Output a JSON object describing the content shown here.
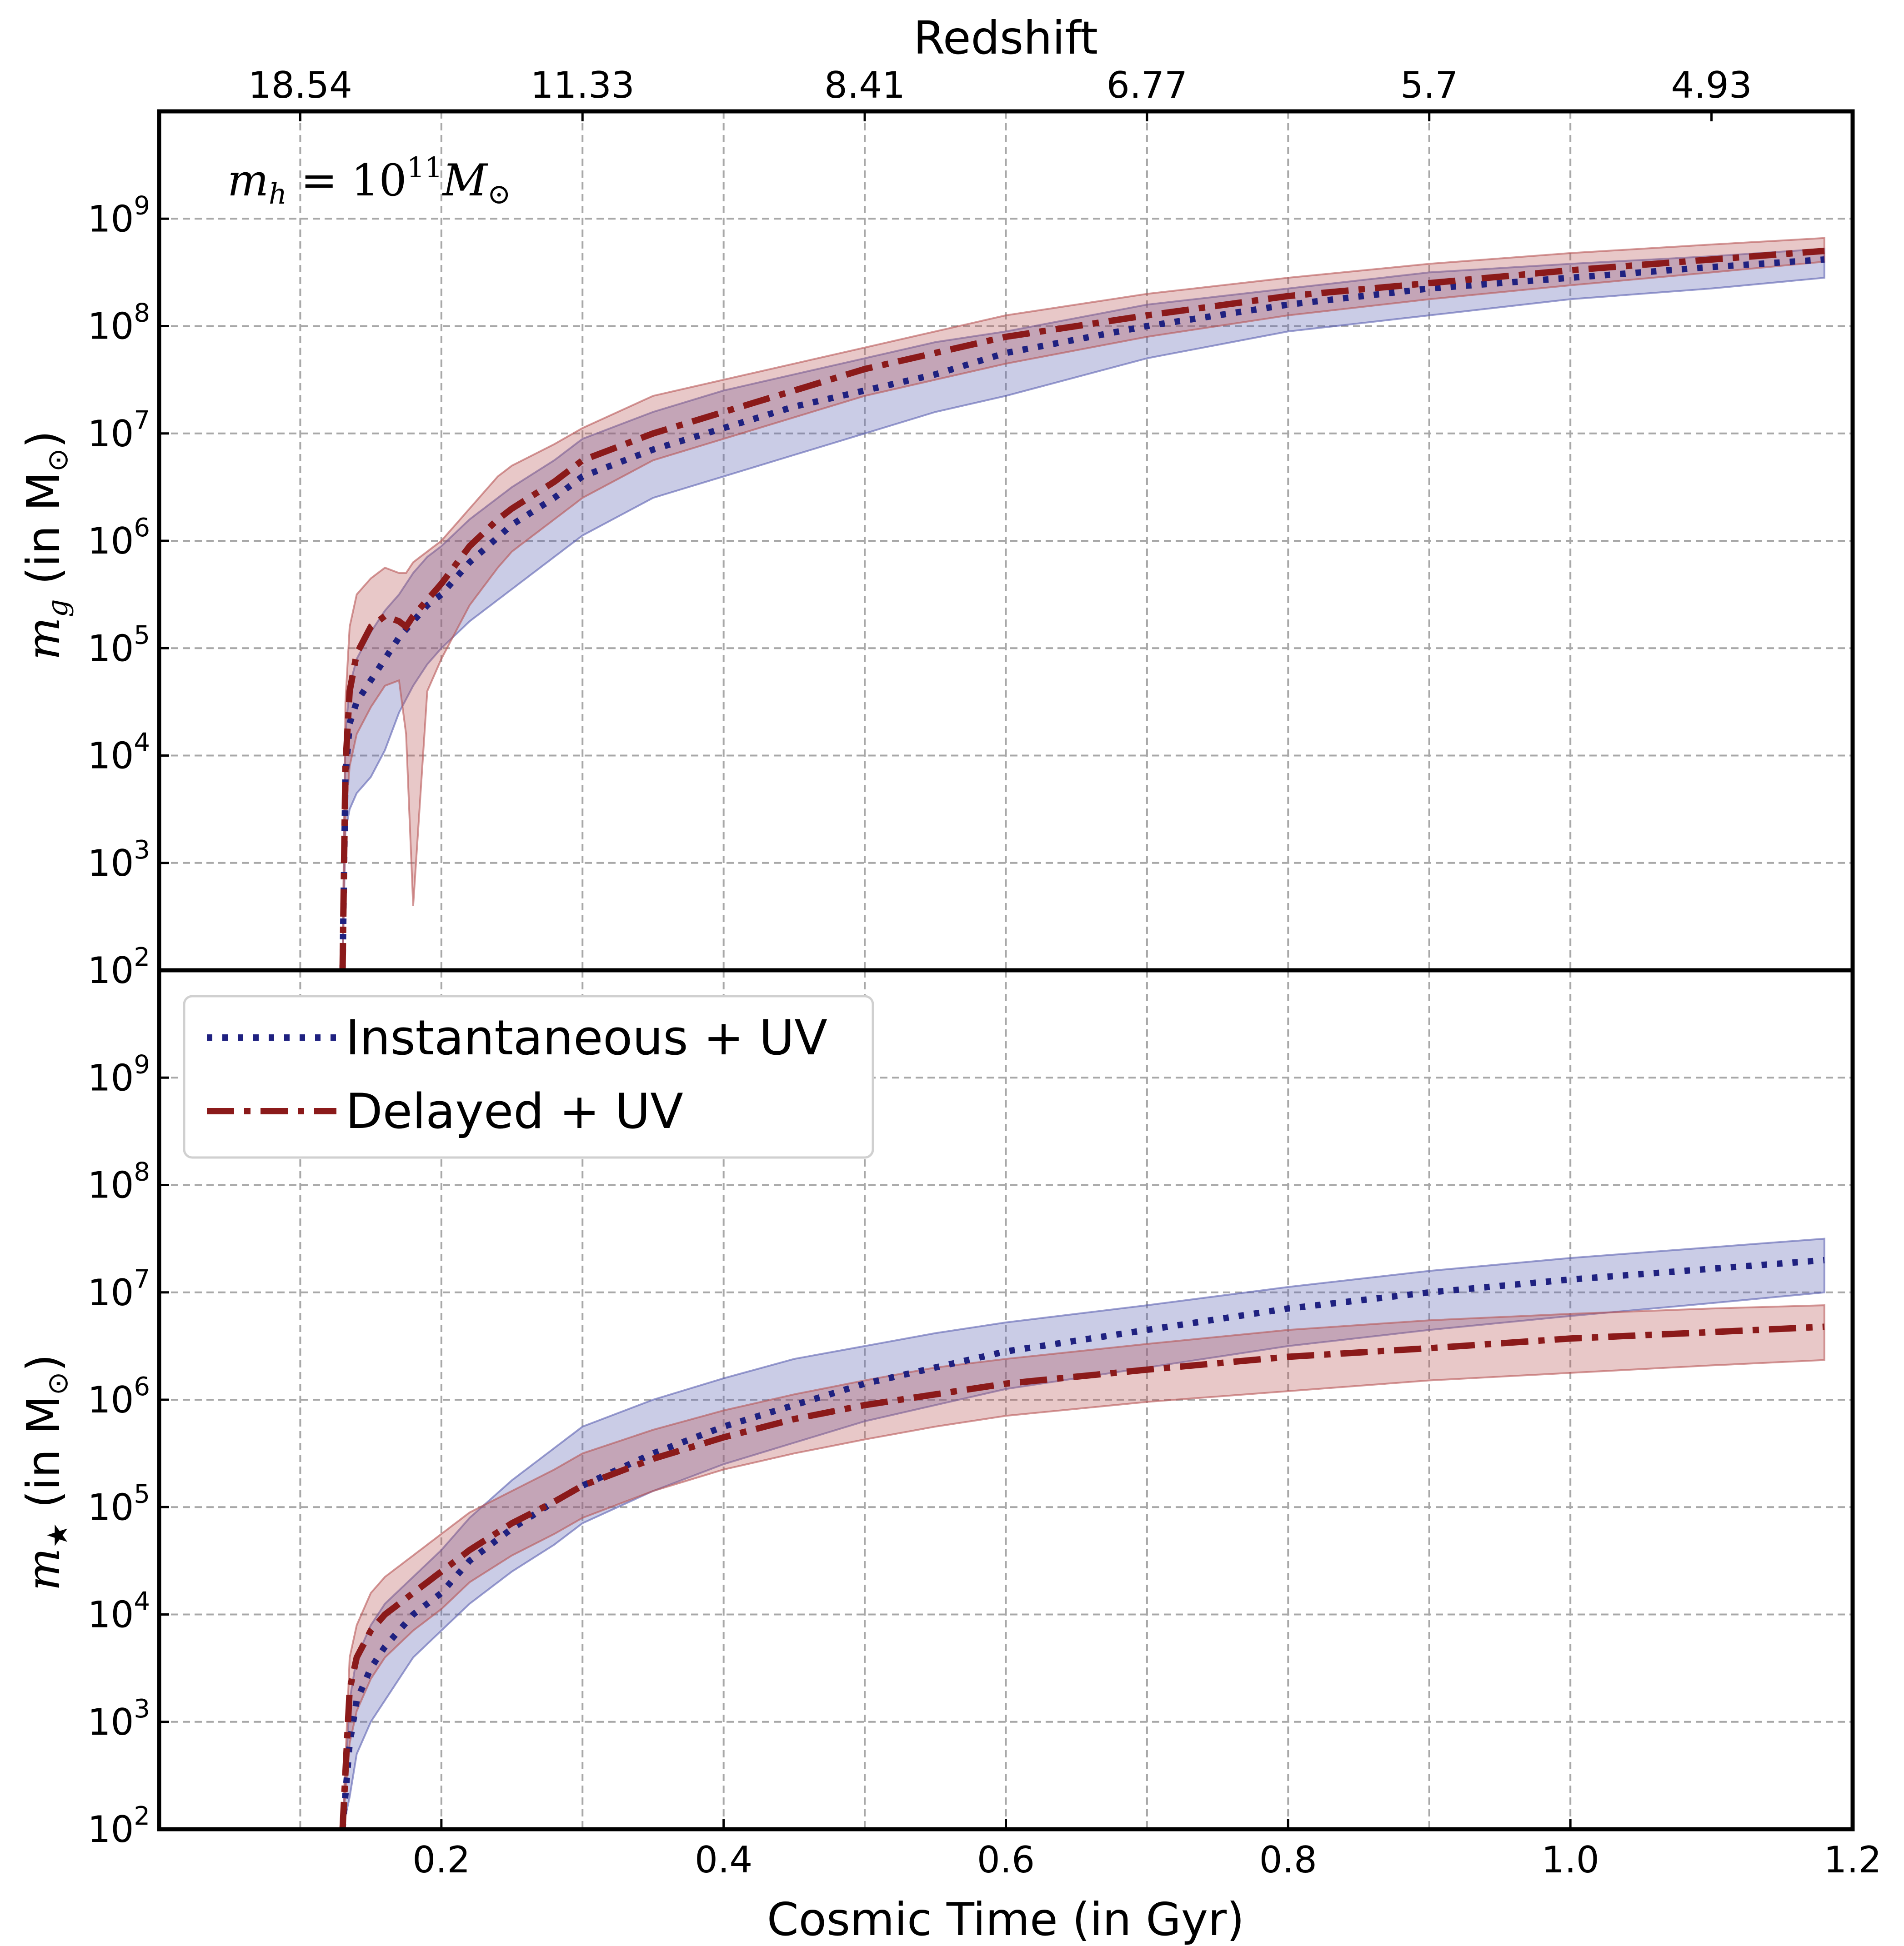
{
  "chart_data": {
    "type": "line",
    "title": "",
    "top_axis": {
      "label": "Redshift",
      "ticks": [
        {
          "t": 0.1,
          "label": "18.54"
        },
        {
          "t": 0.3,
          "label": "11.33"
        },
        {
          "t": 0.5,
          "label": "8.41"
        },
        {
          "t": 0.7,
          "label": "6.77"
        },
        {
          "t": 0.9,
          "label": "5.7"
        },
        {
          "t": 1.1,
          "label": "4.93"
        }
      ]
    },
    "xlabel": "Cosmic Time (in Gyr)",
    "xlim": [
      0.0,
      1.2
    ],
    "xticks": [
      0.2,
      0.4,
      0.6,
      0.8,
      1.0,
      1.2
    ],
    "xtick_labels": [
      "0.2",
      "0.4",
      "0.6",
      "0.8",
      "1.0",
      "1.2"
    ],
    "yscale": "log",
    "ylim_exp": [
      2,
      10
    ],
    "ytick_exps": [
      2,
      3,
      4,
      5,
      6,
      7,
      8,
      9
    ],
    "ytick_base": "10",
    "grid": true,
    "legend": {
      "placement": "upper-left of bottom panel",
      "entries": [
        {
          "series": "instantaneous",
          "label": "Instantaneous + UV"
        },
        {
          "series": "delayed",
          "label": "Delayed + UV"
        }
      ]
    },
    "colors": {
      "instantaneous_line": "#1f2180",
      "instantaneous_band": "#5a5fb0",
      "delayed_line": "#8b1a1a",
      "delayed_band": "#b85555"
    },
    "panels": [
      {
        "name": "gas-mass",
        "annotation": {
          "prefix": "m",
          "sub": "h",
          "equals": " = 10",
          "sup": "11",
          "unit": "M",
          "unit_sub": "⊙"
        },
        "ylabel": {
          "sym": "m",
          "sub": "g",
          "text": " (in M",
          "unit_sub": "⊙",
          "close": ")"
        },
        "series": [
          {
            "name": "Instantaneous + UV",
            "key": "instantaneous",
            "x": [
              0.13,
              0.132,
              0.135,
              0.14,
              0.15,
              0.16,
              0.17,
              0.18,
              0.19,
              0.2,
              0.22,
              0.25,
              0.28,
              0.3,
              0.35,
              0.4,
              0.45,
              0.5,
              0.55,
              0.6,
              0.7,
              0.8,
              0.9,
              1.0,
              1.1,
              1.18
            ],
            "y": [
              2.0,
              3.8,
              4.3,
              4.5,
              4.7,
              4.9,
              5.1,
              5.25,
              5.4,
              5.5,
              5.8,
              6.15,
              6.4,
              6.6,
              6.85,
              7.05,
              7.25,
              7.4,
              7.55,
              7.75,
              8.0,
              8.2,
              8.35,
              8.45,
              8.55,
              8.62
            ],
            "y_lo": [
              2.0,
              3.3,
              3.5,
              3.65,
              3.8,
              4.05,
              4.4,
              4.65,
              4.85,
              5.0,
              5.25,
              5.55,
              5.85,
              6.05,
              6.4,
              6.6,
              6.8,
              7.0,
              7.2,
              7.35,
              7.7,
              7.95,
              8.1,
              8.25,
              8.35,
              8.45
            ],
            "y_hi": [
              2.0,
              4.2,
              4.65,
              4.9,
              5.15,
              5.35,
              5.5,
              5.7,
              5.85,
              5.95,
              6.2,
              6.5,
              6.75,
              6.95,
              7.2,
              7.4,
              7.55,
              7.7,
              7.85,
              7.95,
              8.2,
              8.35,
              8.5,
              8.58,
              8.65,
              8.72
            ]
          },
          {
            "name": "Delayed + UV",
            "key": "delayed",
            "x": [
              0.13,
              0.132,
              0.135,
              0.14,
              0.15,
              0.16,
              0.17,
              0.175,
              0.18,
              0.19,
              0.2,
              0.22,
              0.24,
              0.25,
              0.28,
              0.3,
              0.35,
              0.4,
              0.45,
              0.5,
              0.55,
              0.6,
              0.7,
              0.8,
              0.9,
              1.0,
              1.1,
              1.18
            ],
            "y": [
              2.0,
              3.9,
              4.6,
              4.95,
              5.2,
              5.3,
              5.25,
              5.2,
              5.3,
              5.45,
              5.6,
              5.95,
              6.2,
              6.3,
              6.55,
              6.75,
              7.0,
              7.2,
              7.4,
              7.6,
              7.75,
              7.9,
              8.1,
              8.28,
              8.4,
              8.52,
              8.62,
              8.7
            ],
            "y_lo": [
              2.0,
              3.4,
              3.9,
              4.2,
              4.45,
              4.65,
              4.7,
              4.2,
              2.6,
              4.6,
              4.9,
              5.4,
              5.75,
              5.9,
              6.2,
              6.4,
              6.75,
              6.95,
              7.15,
              7.35,
              7.5,
              7.65,
              7.9,
              8.1,
              8.25,
              8.38,
              8.5,
              8.6
            ],
            "y_hi": [
              2.0,
              4.5,
              5.2,
              5.5,
              5.65,
              5.75,
              5.7,
              5.7,
              5.8,
              5.9,
              6.0,
              6.3,
              6.6,
              6.7,
              6.9,
              7.05,
              7.35,
              7.5,
              7.65,
              7.8,
              7.95,
              8.1,
              8.3,
              8.45,
              8.58,
              8.68,
              8.76,
              8.82
            ]
          }
        ]
      },
      {
        "name": "stellar-mass",
        "ylabel": {
          "sym": "m",
          "sub": "★",
          "text": " (in M",
          "unit_sub": "⊙",
          "close": ")"
        },
        "series": [
          {
            "name": "Instantaneous + UV",
            "key": "instantaneous",
            "x": [
              0.13,
              0.135,
              0.14,
              0.15,
              0.16,
              0.18,
              0.2,
              0.22,
              0.25,
              0.28,
              0.3,
              0.35,
              0.4,
              0.45,
              0.5,
              0.55,
              0.6,
              0.7,
              0.8,
              0.9,
              1.0,
              1.1,
              1.18
            ],
            "y": [
              2.0,
              2.8,
              3.2,
              3.5,
              3.7,
              4.0,
              4.2,
              4.5,
              4.8,
              5.05,
              5.2,
              5.5,
              5.75,
              5.95,
              6.15,
              6.3,
              6.45,
              6.65,
              6.85,
              7.0,
              7.12,
              7.22,
              7.3
            ],
            "y_lo": [
              2.0,
              2.3,
              2.7,
              3.0,
              3.2,
              3.6,
              3.85,
              4.1,
              4.4,
              4.65,
              4.85,
              5.15,
              5.4,
              5.6,
              5.8,
              5.95,
              6.1,
              6.3,
              6.5,
              6.65,
              6.78,
              6.9,
              7.0
            ],
            "y_hi": [
              2.0,
              3.2,
              3.6,
              3.9,
              4.1,
              4.35,
              4.6,
              4.9,
              5.25,
              5.55,
              5.75,
              6.0,
              6.2,
              6.38,
              6.5,
              6.62,
              6.72,
              6.88,
              7.05,
              7.2,
              7.32,
              7.42,
              7.5
            ]
          },
          {
            "name": "Delayed + UV",
            "key": "delayed",
            "x": [
              0.13,
              0.135,
              0.14,
              0.15,
              0.16,
              0.18,
              0.2,
              0.22,
              0.25,
              0.28,
              0.3,
              0.35,
              0.4,
              0.45,
              0.5,
              0.55,
              0.6,
              0.7,
              0.8,
              0.9,
              1.0,
              1.1,
              1.18
            ],
            "y": [
              2.0,
              3.3,
              3.6,
              3.85,
              4.0,
              4.2,
              4.4,
              4.6,
              4.85,
              5.05,
              5.2,
              5.45,
              5.65,
              5.82,
              5.95,
              6.05,
              6.15,
              6.28,
              6.4,
              6.48,
              6.57,
              6.63,
              6.68
            ],
            "y_lo": [
              2.0,
              2.8,
              3.1,
              3.4,
              3.6,
              3.85,
              4.05,
              4.3,
              4.55,
              4.75,
              4.9,
              5.15,
              5.35,
              5.5,
              5.63,
              5.75,
              5.85,
              5.98,
              6.08,
              6.18,
              6.25,
              6.32,
              6.37
            ],
            "y_hi": [
              2.0,
              3.6,
              3.9,
              4.2,
              4.35,
              4.55,
              4.75,
              4.95,
              5.15,
              5.35,
              5.5,
              5.72,
              5.9,
              6.05,
              6.18,
              6.3,
              6.38,
              6.52,
              6.65,
              6.74,
              6.8,
              6.85,
              6.88
            ]
          }
        ]
      }
    ]
  }
}
